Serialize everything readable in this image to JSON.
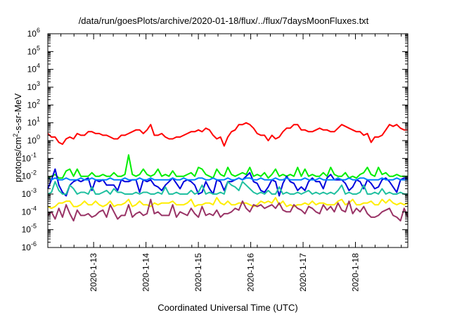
{
  "chart_data": {
    "type": "line",
    "title": "/data/run/goesPlots/archive/2020-01-18/flux/../flux/7daysMoonFluxes.txt",
    "xlabel": "Coordinated Universal Time (UTC)",
    "ylabel": "protons/cm2-s-sr-MeV",
    "y_scale": "log",
    "ylim": [
      1e-06,
      1000000.0
    ],
    "y_ticks": [
      {
        "base": "10",
        "exp": "-6"
      },
      {
        "base": "10",
        "exp": "-5"
      },
      {
        "base": "10",
        "exp": "-4"
      },
      {
        "base": "10",
        "exp": "-3"
      },
      {
        "base": "10",
        "exp": "-2"
      },
      {
        "base": "10",
        "exp": "-1"
      },
      {
        "base": "10",
        "exp": "0"
      },
      {
        "base": "10",
        "exp": "1"
      },
      {
        "base": "10",
        "exp": "2"
      },
      {
        "base": "10",
        "exp": "3"
      },
      {
        "base": "10",
        "exp": "4"
      },
      {
        "base": "10",
        "exp": "5"
      },
      {
        "base": "10",
        "exp": "6"
      }
    ],
    "xlim": [
      "2020-01-12 03:00",
      "2020-01-19 00:00"
    ],
    "x_ticks": [
      "2020-1-13",
      "2020-1-14",
      "2020-1-15",
      "2020-1-16",
      "2020-1-17",
      "2020-1-18"
    ],
    "grid": false,
    "legend": "none",
    "series": [
      {
        "color": "#ff0000",
        "values_log10": [
          0.4,
          0.2,
          0.2,
          -0.1,
          -0.2,
          0.1,
          0.2,
          0.1,
          0.4,
          0.3,
          0.3,
          0.5,
          0.5,
          0.4,
          0.4,
          0.3,
          0.3,
          0.2,
          0.1,
          0.1,
          0.3,
          0.3,
          0.4,
          0.5,
          0.6,
          0.6,
          0.4,
          0.6,
          0.9,
          0.3,
          0.3,
          0.4,
          0.2,
          0.1,
          0.1,
          0.2,
          0.2,
          0.3,
          0.4,
          0.5,
          0.5,
          0.6,
          0.5,
          0.7,
          0.6,
          0.3,
          0.1,
          0.2,
          -0.3,
          0.2,
          0.5,
          0.6,
          0.9,
          0.9,
          1.0,
          0.9,
          0.7,
          0.4,
          0.3,
          0.3,
          0.0,
          0.3,
          0.1,
          0.2,
          0.5,
          0.7,
          0.7,
          0.9,
          0.9,
          0.6,
          0.6,
          0.5,
          0.5,
          0.6,
          0.7,
          0.6,
          0.6,
          0.5,
          0.5,
          0.7,
          0.9,
          0.8,
          0.7,
          0.6,
          0.5,
          0.5,
          0.3,
          0.4,
          -0.1,
          0.2,
          0.2,
          0.3,
          0.6,
          0.9,
          0.8,
          0.9,
          0.7,
          0.6,
          0.6
        ]
      },
      {
        "color": "#00ee00",
        "values_log10": [
          -2.1,
          -2.0,
          -1.9,
          -2.1,
          -2.1,
          -1.7,
          -1.6,
          -2.0,
          -1.6,
          -2.0,
          -2.0,
          -2.0,
          -1.8,
          -2.0,
          -2.0,
          -1.9,
          -2.0,
          -2.0,
          -1.8,
          -2.0,
          -2.0,
          -1.9,
          -0.8,
          -1.9,
          -2.0,
          -1.9,
          -1.6,
          -1.9,
          -2.0,
          -1.9,
          -1.6,
          -2.0,
          -1.9,
          -2.0,
          -1.7,
          -2.0,
          -2.0,
          -2.0,
          -1.9,
          -1.8,
          -2.0,
          -1.5,
          -1.6,
          -1.9,
          -2.0,
          -2.1,
          -1.6,
          -1.9,
          -2.0,
          -1.5,
          -1.9,
          -2.0,
          -1.9,
          -1.8,
          -1.9,
          -1.5,
          -2.0,
          -1.9,
          -2.0,
          -1.8,
          -2.1,
          -1.9,
          -1.6,
          -2.0,
          -1.9,
          -2.0,
          -1.9,
          -2.0,
          -1.5,
          -2.0,
          -1.6,
          -2.0,
          -1.9,
          -2.0,
          -2.0,
          -1.8,
          -2.0,
          -1.5,
          -1.9,
          -2.0,
          -2.0,
          -1.8,
          -2.1,
          -2.0,
          -2.1,
          -1.9,
          -1.8,
          -1.5,
          -1.9,
          -2.0,
          -1.5,
          -1.9,
          -1.8,
          -2.0,
          -2.0,
          -1.9,
          -2.0,
          -2.0,
          -2.0
        ]
      },
      {
        "color": "#0000dd",
        "values_log10": [
          -2.7,
          -2.2,
          -1.6,
          -2.5,
          -2.9,
          -3.1,
          -2.5,
          -2.3,
          -2.2,
          -2.3,
          -2.2,
          -2.1,
          -2.8,
          -2.2,
          -2.3,
          -2.2,
          -2.5,
          -2.5,
          -2.5,
          -2.8,
          -2.2,
          -2.3,
          -2.3,
          -2.2,
          -2.2,
          -2.9,
          -2.2,
          -2.3,
          -2.2,
          -2.5,
          -2.6,
          -2.8,
          -2.5,
          -2.3,
          -2.1,
          -2.4,
          -2.7,
          -2.3,
          -2.2,
          -2.3,
          -2.5,
          -3.0,
          -2.9,
          -2.3,
          -2.7,
          -3.0,
          -2.2,
          -2.3,
          -2.8,
          -2.3,
          -2.3,
          -2.2,
          -2.1,
          -2.2,
          -2.0,
          -1.8,
          -2.3,
          -2.4,
          -2.8,
          -2.9,
          -2.6,
          -2.2,
          -2.3,
          -3.1,
          -2.4,
          -2.0,
          -2.3,
          -2.4,
          -2.8,
          -2.6,
          -2.8,
          -2.3,
          -2.1,
          -2.3,
          -2.3,
          -2.7,
          -2.1,
          -1.9,
          -2.2,
          -2.2,
          -2.2,
          -2.4,
          -2.8,
          -2.6,
          -2.2,
          -2.3,
          -2.7,
          -2.2,
          -2.4,
          -2.7,
          -2.6,
          -2.2,
          -2.1,
          -2.3,
          -2.6,
          -2.9,
          -2.2,
          -2.1,
          -2.1
        ]
      },
      {
        "color": "#0080ff",
        "values_log10": [
          -2.1,
          -2.2,
          -2.1,
          -2.2,
          -2.2,
          -2.1,
          -2.2,
          -2.2,
          -2.2,
          -2.1,
          -2.2,
          -2.2,
          -2.1,
          -2.2,
          -2.2,
          -2.2,
          -2.2,
          -2.1,
          -2.2,
          -2.2,
          -2.2,
          -2.1,
          -2.2,
          -2.2,
          -2.2,
          -2.1,
          -2.2,
          -2.2,
          -2.1,
          -2.2,
          -2.2,
          -2.2,
          -2.2,
          -2.2,
          -2.1,
          -2.2,
          -2.2,
          -2.1,
          -2.2,
          -2.2,
          -2.2,
          -2.1,
          -2.1,
          -2.2,
          -2.2,
          -2.1,
          -2.2,
          -2.2,
          -2.2,
          -2.1,
          -2.2,
          -2.2,
          -2.1,
          -2.2,
          -2.1,
          -2.1,
          -2.2,
          -2.2,
          -2.1,
          -2.2,
          -2.2,
          -2.2,
          -2.1,
          -2.2,
          -2.2,
          -2.1,
          -2.2,
          -2.2,
          -2.2,
          -2.2,
          -2.1,
          -2.2,
          -2.2,
          -2.2,
          -2.1,
          -2.2,
          -2.2,
          -2.2,
          -2.2,
          -2.1,
          -2.2,
          -2.2,
          -2.1,
          -2.2,
          -2.2,
          -2.1,
          -2.1,
          -2.2,
          -2.2,
          -2.2,
          -2.2,
          -2.1,
          -2.2,
          -2.2,
          -2.2,
          -2.1,
          -2.2,
          -2.2,
          -2.2
        ]
      },
      {
        "color": "#20c0a0",
        "values_log10": [
          -3.0,
          -2.9,
          -2.3,
          -2.8,
          -3.0,
          -3.0,
          -2.5,
          -2.7,
          -3.0,
          -2.9,
          -2.9,
          -3.0,
          -2.6,
          -3.0,
          -3.0,
          -2.9,
          -2.8,
          -3.0,
          -2.7,
          -2.9,
          -2.9,
          -3.0,
          -3.0,
          -3.0,
          -2.9,
          -3.0,
          -2.9,
          -2.9,
          -3.0,
          -3.0,
          -2.9,
          -3.0,
          -2.6,
          -3.0,
          -3.0,
          -2.9,
          -3.0,
          -3.0,
          -3.0,
          -2.8,
          -3.0,
          -2.9,
          -2.5,
          -3.0,
          -2.9,
          -3.0,
          -3.0,
          -2.9,
          -3.0,
          -2.3,
          -2.5,
          -2.6,
          -2.8,
          -2.3,
          -2.5,
          -2.7,
          -2.9,
          -3.0,
          -2.9,
          -3.0,
          -2.8,
          -3.0,
          -3.0,
          -2.6,
          -3.0,
          -2.9,
          -3.0,
          -3.0,
          -2.9,
          -3.0,
          -2.9,
          -2.8,
          -3.0,
          -2.9,
          -3.0,
          -2.9,
          -3.0,
          -2.9,
          -3.0,
          -2.8,
          -2.5,
          -3.0,
          -2.9,
          -3.0,
          -3.0,
          -2.9,
          -2.5,
          -3.0,
          -3.0,
          -2.9,
          -3.0,
          -2.7,
          -3.0,
          -2.9,
          -3.0,
          -3.0,
          -2.9,
          -3.0,
          -3.0
        ]
      },
      {
        "color": "#ffee00",
        "values_log10": [
          -3.7,
          -3.8,
          -3.7,
          -3.5,
          -3.5,
          -3.4,
          -3.4,
          -3.7,
          -3.7,
          -3.6,
          -3.4,
          -3.6,
          -3.6,
          -3.4,
          -3.6,
          -3.7,
          -3.6,
          -3.4,
          -3.7,
          -3.6,
          -3.6,
          -3.5,
          -3.3,
          -3.7,
          -3.6,
          -3.4,
          -3.6,
          -3.6,
          -3.7,
          -3.5,
          -3.6,
          -3.5,
          -3.5,
          -3.5,
          -3.4,
          -3.6,
          -3.6,
          -3.6,
          -3.5,
          -3.3,
          -3.7,
          -3.6,
          -3.6,
          -3.5,
          -3.5,
          -3.6,
          -3.2,
          -3.5,
          -3.6,
          -3.4,
          -3.6,
          -3.6,
          -3.5,
          -3.5,
          -3.5,
          -3.6,
          -3.7,
          -3.6,
          -3.4,
          -3.5,
          -3.4,
          -3.5,
          -3.2,
          -3.6,
          -3.4,
          -3.7,
          -3.6,
          -3.7,
          -3.6,
          -3.6,
          -3.5,
          -3.6,
          -3.4,
          -3.6,
          -3.5,
          -3.5,
          -3.6,
          -3.6,
          -3.6,
          -3.4,
          -3.3,
          -3.6,
          -3.5,
          -3.3,
          -3.6,
          -3.6,
          -3.5,
          -3.5,
          -3.4,
          -3.6,
          -3.6,
          -3.3,
          -3.5,
          -3.3,
          -3.5,
          -3.6,
          -3.5,
          -3.6,
          -3.5
        ]
      },
      {
        "color": "#993366",
        "values_log10": [
          -4.2,
          -4.0,
          -4.4,
          -3.8,
          -4.3,
          -3.6,
          -4.1,
          -4.5,
          -3.9,
          -4.2,
          -4.2,
          -4.1,
          -4.3,
          -4.2,
          -4.0,
          -3.9,
          -4.3,
          -3.6,
          -4.0,
          -4.4,
          -4.2,
          -4.2,
          -3.6,
          -4.3,
          -4.1,
          -4.0,
          -4.2,
          -4.1,
          -3.3,
          -4.1,
          -4.0,
          -4.2,
          -4.2,
          -4.2,
          -3.6,
          -4.3,
          -4.0,
          -4.1,
          -4.2,
          -3.8,
          -4.1,
          -4.3,
          -3.7,
          -4.2,
          -4.1,
          -4.2,
          -3.9,
          -4.3,
          -4.1,
          -4.1,
          -4.0,
          -3.8,
          -3.9,
          -3.4,
          -3.8,
          -4.0,
          -3.6,
          -3.7,
          -3.6,
          -3.8,
          -3.7,
          -3.6,
          -3.8,
          -3.5,
          -3.9,
          -4.0,
          -4.0,
          -3.6,
          -3.8,
          -3.9,
          -4.1,
          -3.7,
          -3.8,
          -4.0,
          -4.1,
          -3.6,
          -3.9,
          -3.7,
          -4.0,
          -3.5,
          -3.9,
          -4.0,
          -3.4,
          -4.1,
          -3.8,
          -4.0,
          -3.7,
          -4.1,
          -4.3,
          -4.3,
          -4.2,
          -4.0,
          -3.9,
          -3.8,
          -4.2,
          -4.3,
          -4.5,
          -3.8,
          -4.3
        ]
      }
    ]
  }
}
